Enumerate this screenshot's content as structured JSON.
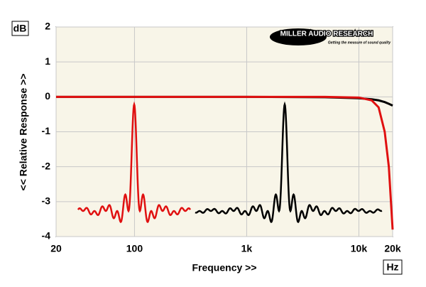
{
  "chart_data": {
    "type": "line",
    "x_label": "Frequency >>",
    "y_label": "<< Relative Response >>",
    "y_unit": "dB",
    "x_unit": "Hz",
    "logo_text": "MILLER AUDIO RESEARCH",
    "logo_tagline": "Getting the measure of sound quality",
    "x": [
      20,
      1000,
      5000,
      10000,
      13000,
      15000,
      17000,
      18500,
      20000
    ],
    "series": [
      {
        "name": "Black",
        "color": "#000000",
        "values": [
          0,
          0,
          -0.01,
          -0.04,
          -0.07,
          -0.1,
          -0.15,
          -0.2,
          -0.25
        ]
      },
      {
        "name": "Red",
        "color": "#e01010",
        "values": [
          0,
          0,
          0,
          -0.02,
          -0.1,
          -0.3,
          -1,
          -2,
          -3.8
        ]
      }
    ],
    "xlim": [
      20,
      20000
    ],
    "log_x": true,
    "xticks": [
      20,
      100,
      {
        "value": 1000,
        "label": "1k"
      },
      {
        "value": 10000,
        "label": "10k"
      },
      {
        "value": 20000,
        "label": "20k"
      }
    ],
    "ylim": [
      -4,
      2
    ],
    "yticks": [
      2,
      1,
      0,
      -1,
      -2,
      -3,
      -4
    ],
    "grid": true
  }
}
